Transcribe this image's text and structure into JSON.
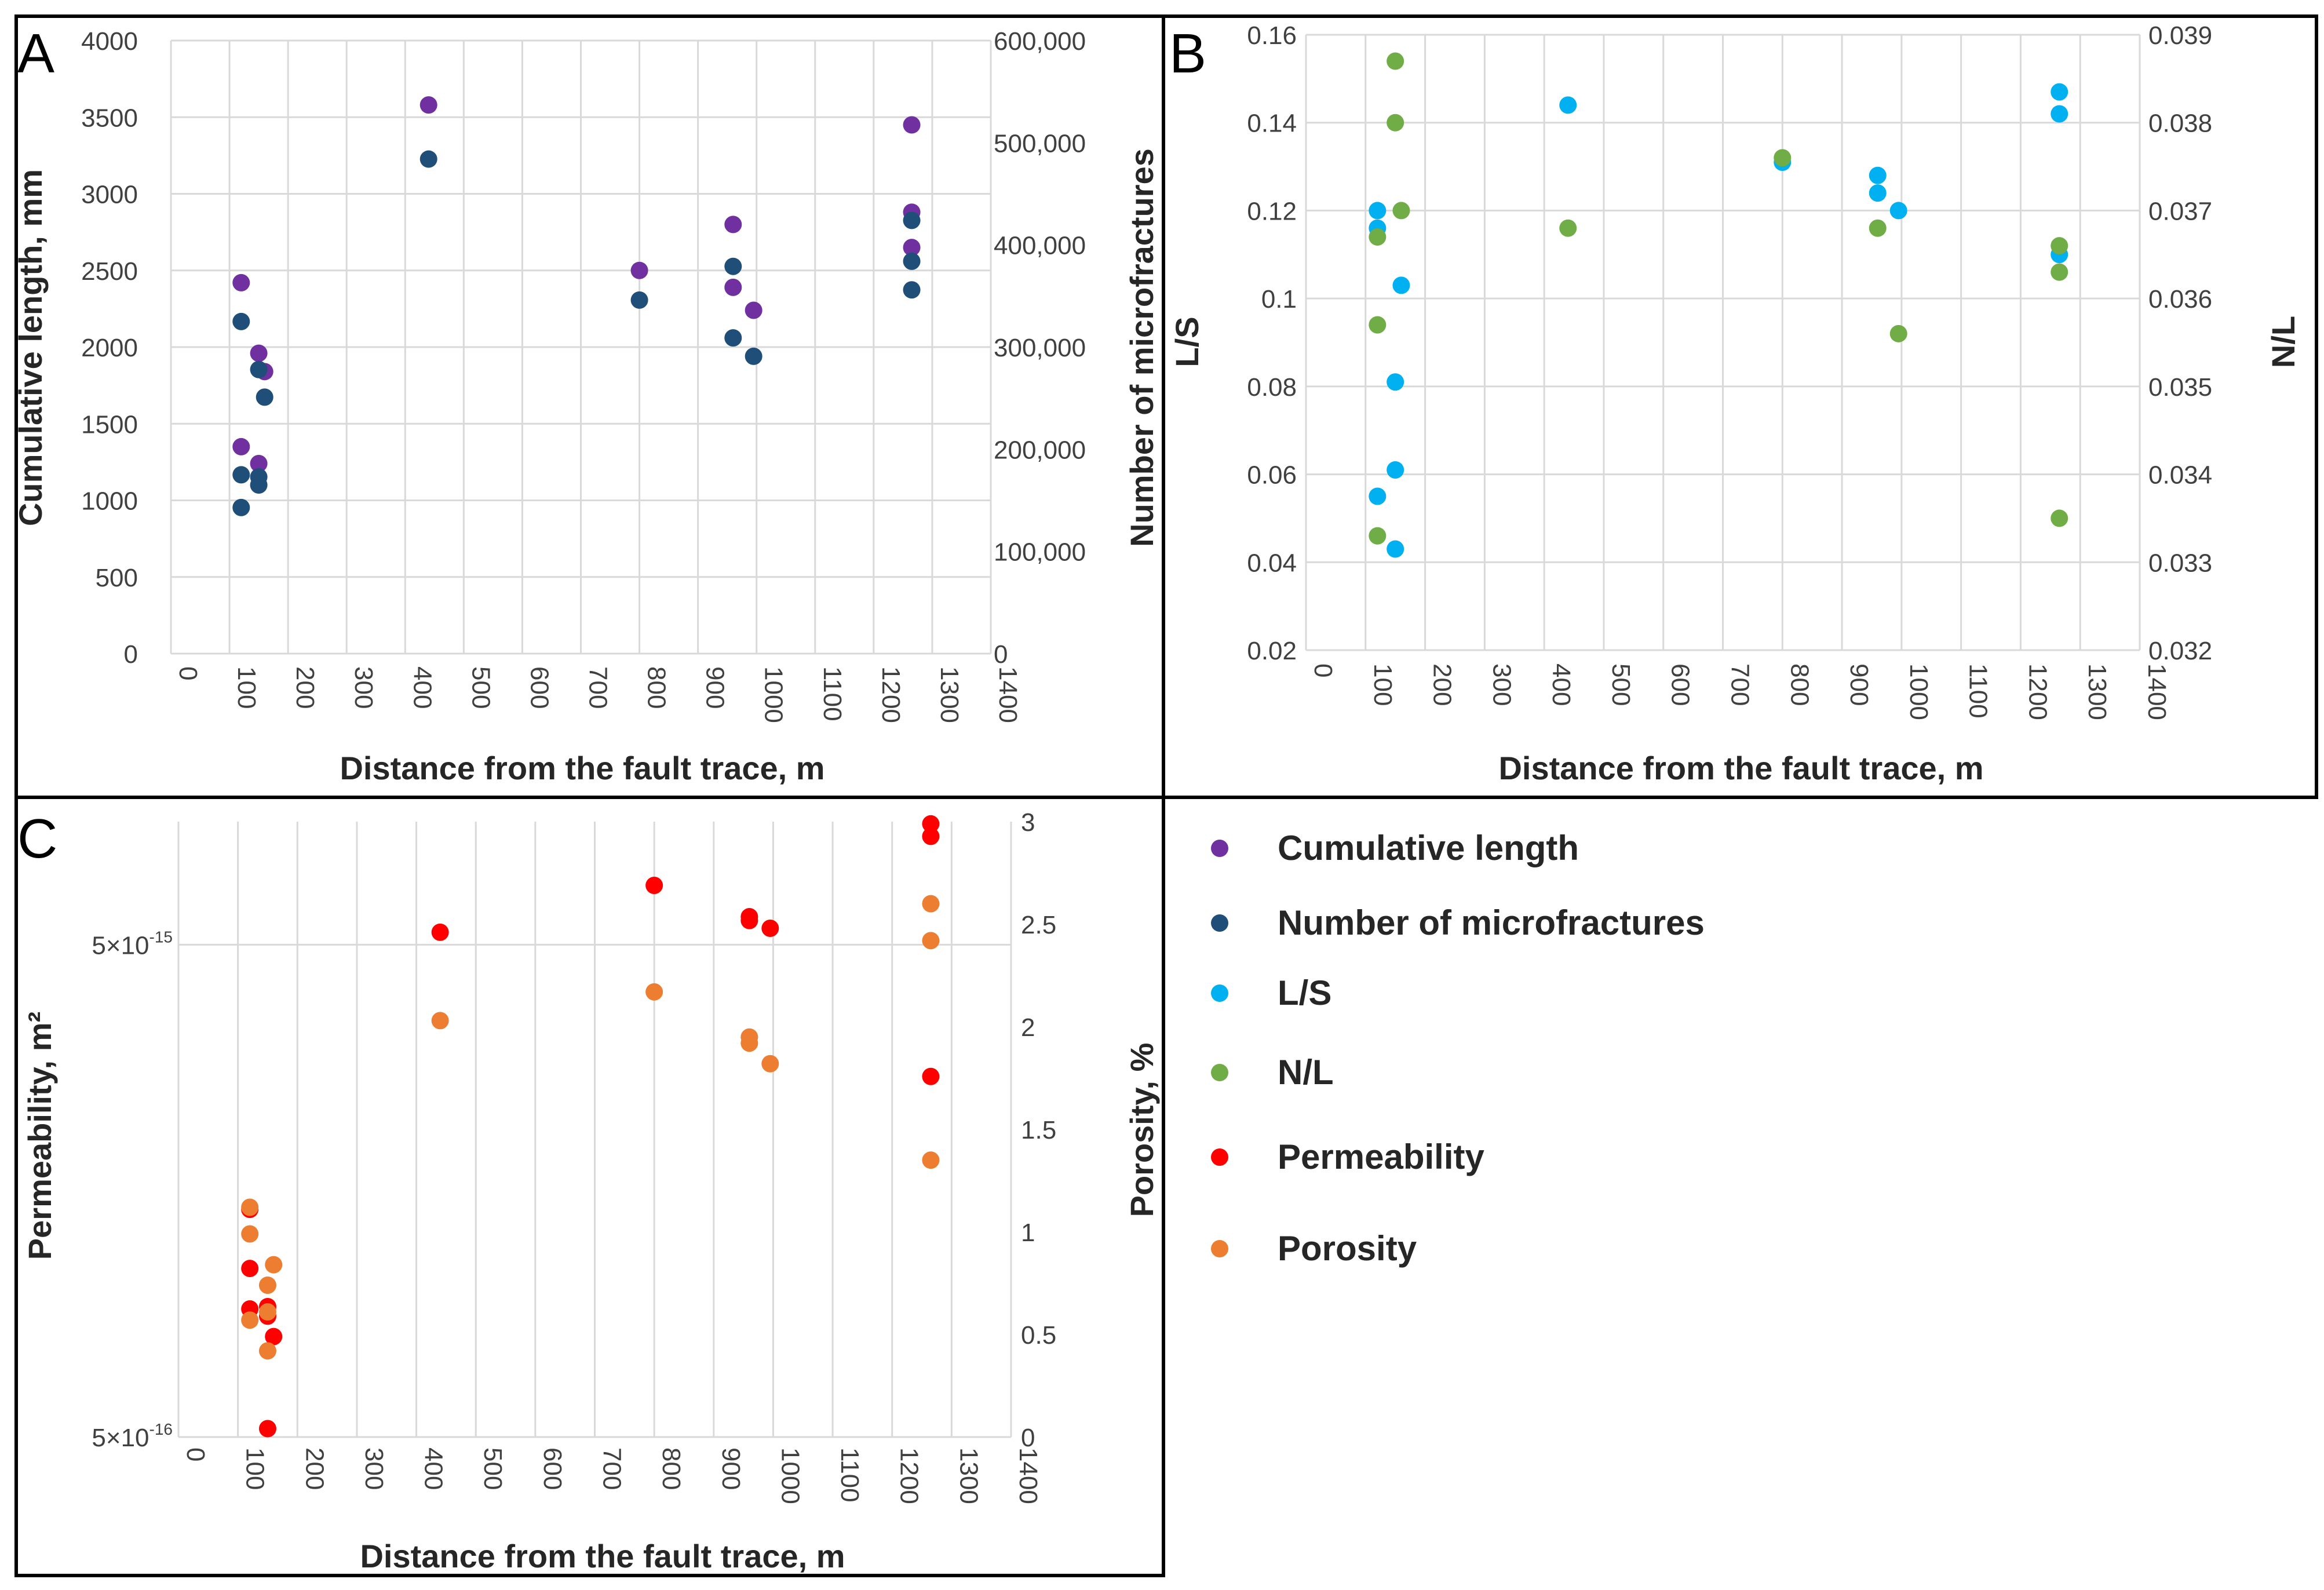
{
  "colors": {
    "cumulative_length": "#7030a0",
    "number_of_microfractures": "#1f4e79",
    "ls": "#00b0f0",
    "nl": "#70ad47",
    "permeability": "#ff0000",
    "porosity": "#ed7d31"
  },
  "legend": [
    {
      "key": "cumulative_length",
      "label": "Cumulative length"
    },
    {
      "key": "number_of_microfractures",
      "label": "Number of microfractures"
    },
    {
      "key": "ls",
      "label": "L/S"
    },
    {
      "key": "nl",
      "label": "N/L"
    },
    {
      "key": "permeability",
      "label": "Permeability"
    },
    {
      "key": "porosity",
      "label": "Porosity"
    }
  ],
  "chart_data": [
    {
      "panel": "A",
      "type": "scatter",
      "xlabel": "Distance from the fault trace, m",
      "ylabel": "Cumulative length, mm",
      "y2label": "Number of microfractures",
      "xlim": [
        0,
        1400
      ],
      "ylim": [
        0,
        4000
      ],
      "y2lim": [
        0,
        600000
      ],
      "xticks": [
        "0",
        "100",
        "200",
        "300",
        "400",
        "500",
        "600",
        "700",
        "800",
        "900",
        "1000",
        "1100",
        "1200",
        "1300",
        "1400"
      ],
      "yticks": [
        "0",
        "500",
        "1000",
        "1500",
        "2000",
        "2500",
        "3000",
        "3500",
        "4000"
      ],
      "y2ticks": [
        "0",
        "100,000",
        "200,000",
        "300,000",
        "400,000",
        "500,000",
        "600,000"
      ],
      "series": [
        {
          "name": "Cumulative length",
          "axis": "left",
          "color_key": "cumulative_length",
          "x": [
            120,
            120,
            150,
            150,
            160,
            440,
            800,
            960,
            960,
            995,
            1265,
            1265,
            1265
          ],
          "y": [
            2420,
            1350,
            1960,
            1240,
            1840,
            3580,
            2500,
            2800,
            2390,
            2240,
            3450,
            2880,
            2650
          ]
        },
        {
          "name": "Number of microfractures",
          "axis": "right",
          "color_key": "number_of_microfractures",
          "x": [
            120,
            120,
            120,
            150,
            150,
            150,
            160,
            440,
            800,
            960,
            960,
            995,
            1265,
            1265,
            1265
          ],
          "y": [
            325000,
            175000,
            143000,
            278000,
            173000,
            165000,
            251000,
            484000,
            346000,
            379000,
            309000,
            291000,
            424000,
            384000,
            356000
          ]
        }
      ]
    },
    {
      "panel": "B",
      "type": "scatter",
      "xlabel": "Distance from the fault trace, m",
      "ylabel": "L/S",
      "y2label": "N/L",
      "xlim": [
        0,
        1400
      ],
      "ylim": [
        0.02,
        0.16
      ],
      "y2lim": [
        0.032,
        0.039
      ],
      "xticks": [
        "0",
        "100",
        "200",
        "300",
        "400",
        "500",
        "600",
        "700",
        "800",
        "900",
        "1000",
        "1100",
        "1200",
        "1300",
        "1400"
      ],
      "yticks": [
        "0.02",
        "0.04",
        "0.06",
        "0.08",
        "0.1",
        "0.12",
        "0.14",
        "0.16"
      ],
      "y2ticks": [
        "0.032",
        "0.033",
        "0.034",
        "0.035",
        "0.036",
        "0.037",
        "0.038",
        "0.039"
      ],
      "series": [
        {
          "name": "L/S",
          "axis": "left",
          "color_key": "ls",
          "x": [
            120,
            120,
            120,
            150,
            150,
            150,
            160,
            440,
            800,
            960,
            960,
            995,
            1265,
            1265,
            1265
          ],
          "y": [
            0.12,
            0.116,
            0.055,
            0.081,
            0.061,
            0.043,
            0.103,
            0.144,
            0.131,
            0.128,
            0.124,
            0.12,
            0.147,
            0.142,
            0.11
          ]
        },
        {
          "name": "N/L",
          "axis": "right",
          "color_key": "nl",
          "x": [
            120,
            120,
            120,
            150,
            150,
            160,
            440,
            800,
            960,
            995,
            1265,
            1265,
            1265
          ],
          "y": [
            0.0367,
            0.0357,
            0.0333,
            0.0387,
            0.038,
            0.037,
            0.0368,
            0.0376,
            0.0368,
            0.0356,
            0.0366,
            0.0363,
            0.0335
          ]
        }
      ]
    },
    {
      "panel": "C",
      "type": "scatter",
      "xlabel": "Distance from the fault trace, m",
      "ylabel": "Permeability, m²",
      "y2label": "Porosity, %",
      "yscale": "log",
      "xlim": [
        0,
        1400
      ],
      "ylim": [
        5e-16,
        1e-14
      ],
      "y2lim": [
        0,
        3
      ],
      "xticks": [
        "0",
        "100",
        "200",
        "300",
        "400",
        "500",
        "600",
        "700",
        "800",
        "900",
        "1000",
        "1100",
        "1200",
        "1300",
        "1400"
      ],
      "yticks": [
        {
          "value": 5e-15,
          "mantissa": "5×10",
          "exp": "-15"
        },
        {
          "value": 5e-16,
          "mantissa": "5×10",
          "exp": "-16"
        }
      ],
      "y2ticks": [
        "0",
        "0.5",
        "1",
        "1.5",
        "2",
        "2.5",
        "3"
      ],
      "series": [
        {
          "name": "Permeability",
          "axis": "left",
          "color_key": "permeability",
          "x": [
            120,
            120,
            120,
            150,
            150,
            150,
            160,
            440,
            800,
            960,
            960,
            995,
            1265,
            1265,
            1265
          ],
          "y": [
            1.45e-15,
            9.1e-16,
            1.1e-15,
            9.2e-16,
            5.2e-16,
            8.8e-16,
            8e-16,
            5.3e-15,
            6.6e-15,
            5.6e-15,
            5.7e-15,
            5.4e-15,
            8.3e-15,
            8.8e-15,
            2.7e-15
          ]
        },
        {
          "name": "Porosity",
          "axis": "right",
          "color_key": "porosity",
          "x": [
            120,
            120,
            120,
            150,
            150,
            150,
            160,
            440,
            800,
            960,
            960,
            995,
            1265,
            1265,
            1265
          ],
          "y": [
            1.12,
            0.99,
            0.57,
            0.74,
            0.61,
            0.42,
            0.84,
            2.03,
            2.17,
            1.95,
            1.92,
            1.82,
            2.6,
            2.42,
            1.35
          ]
        }
      ]
    }
  ]
}
